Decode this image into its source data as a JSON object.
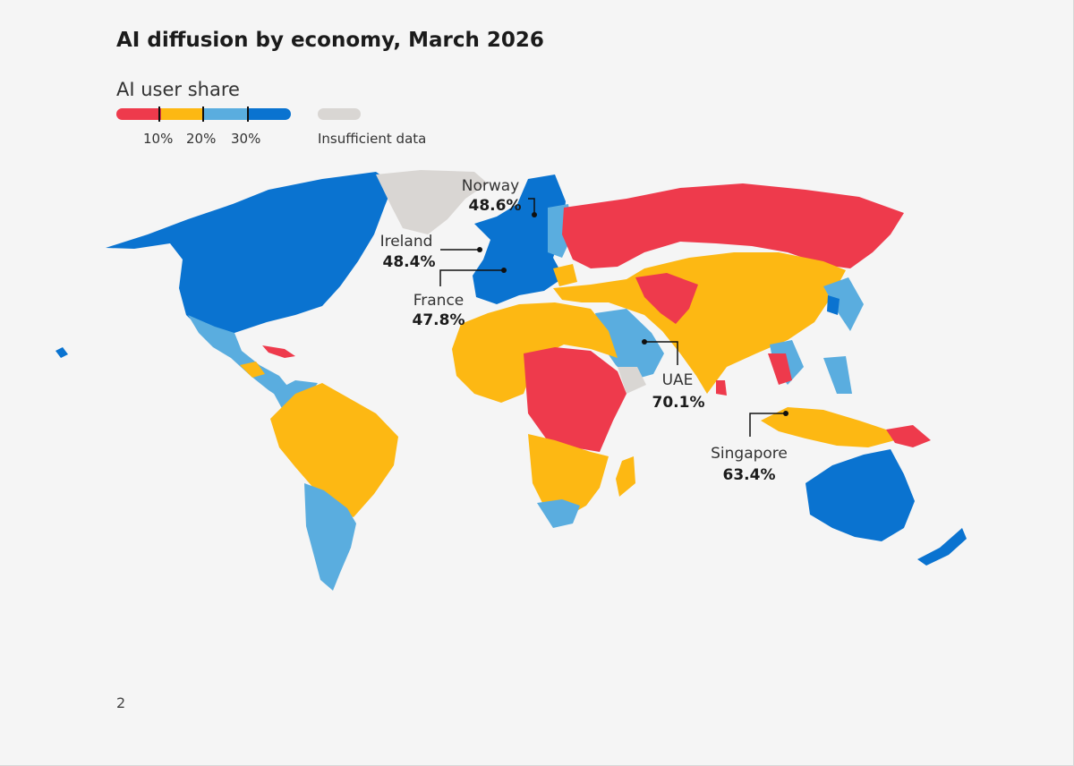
{
  "title": "AI diffusion by economy, March 2026",
  "legend": {
    "title": "AI user share",
    "bins": [
      {
        "range": "<10%",
        "color": "#ee3a4c"
      },
      {
        "range": "10–20%",
        "color": "#fdb813"
      },
      {
        "range": "20–30%",
        "color": "#5aaddf"
      },
      {
        "range": ">30%",
        "color": "#0a73d0"
      }
    ],
    "tick_labels": [
      "10%",
      "20%",
      "30%"
    ],
    "no_data_label": "Insufficient data",
    "no_data_color": "#d9d6d3"
  },
  "callouts": [
    {
      "country": "Norway",
      "value": "48.6%"
    },
    {
      "country": "Ireland",
      "value": "48.4%"
    },
    {
      "country": "France",
      "value": "47.8%"
    },
    {
      "country": "UAE",
      "value": "70.1%"
    },
    {
      "country": "Singapore",
      "value": "63.4%"
    }
  ],
  "page_number": "2"
}
